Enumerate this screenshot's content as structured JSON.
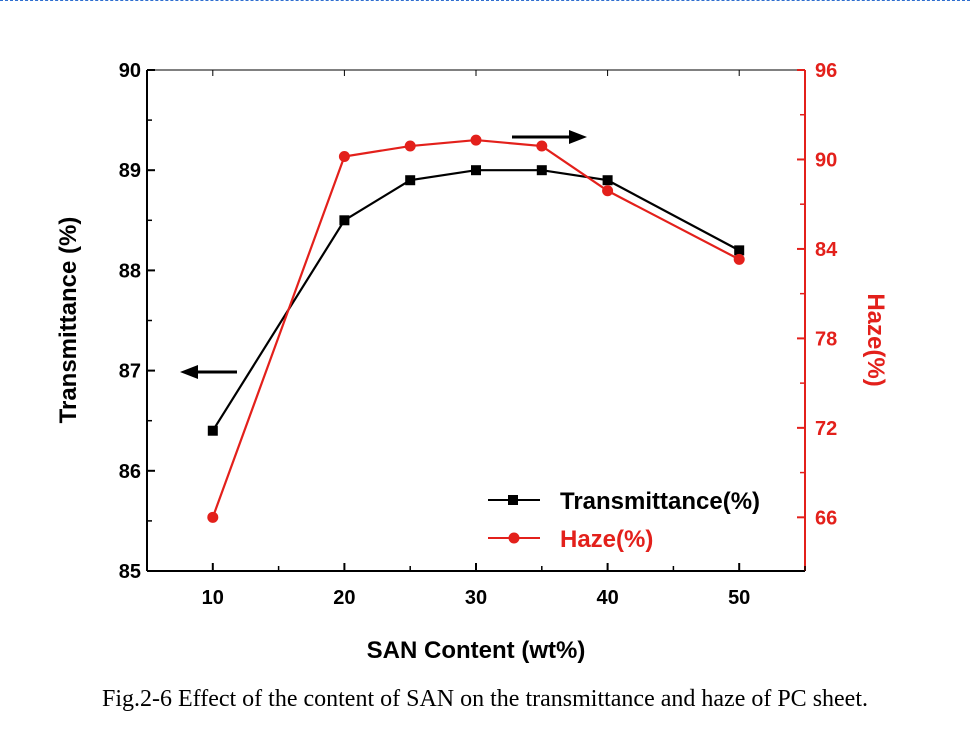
{
  "chart_data": {
    "type": "line",
    "title": "",
    "xlabel": "SAN Content (wt%)",
    "ylabel_left": "Transmittance (%)",
    "ylabel_right": "Haze(%)",
    "x": [
      10,
      20,
      25,
      30,
      35,
      40,
      50
    ],
    "xlim": [
      5,
      55
    ],
    "xticks": [
      "10",
      "20",
      "30",
      "40",
      "50"
    ],
    "ylim_left": [
      85,
      90
    ],
    "yticks_left": [
      "85",
      "86",
      "87",
      "88",
      "89",
      "90"
    ],
    "ylim_right": [
      62.4,
      96
    ],
    "yticks_right": [
      "66",
      "72",
      "78",
      "84",
      "90",
      "96"
    ],
    "series": [
      {
        "name": "Transmittance(%)",
        "axis": "left",
        "marker": "square",
        "color": "#000000",
        "values": [
          86.4,
          88.5,
          88.9,
          89.0,
          89.0,
          88.9,
          88.2
        ]
      },
      {
        "name": "Haze(%)",
        "axis": "right",
        "marker": "circle",
        "color": "#e3201b",
        "values": [
          66.0,
          90.2,
          90.9,
          91.3,
          90.9,
          87.9,
          83.3
        ]
      }
    ],
    "legend_position": "bottom-right",
    "grid": false,
    "colors": {
      "left_axis": "#000000",
      "right_axis": "#e3201b"
    }
  },
  "caption": "Fig.2-6 Effect of the content of SAN on the transmittance and haze of PC sheet."
}
